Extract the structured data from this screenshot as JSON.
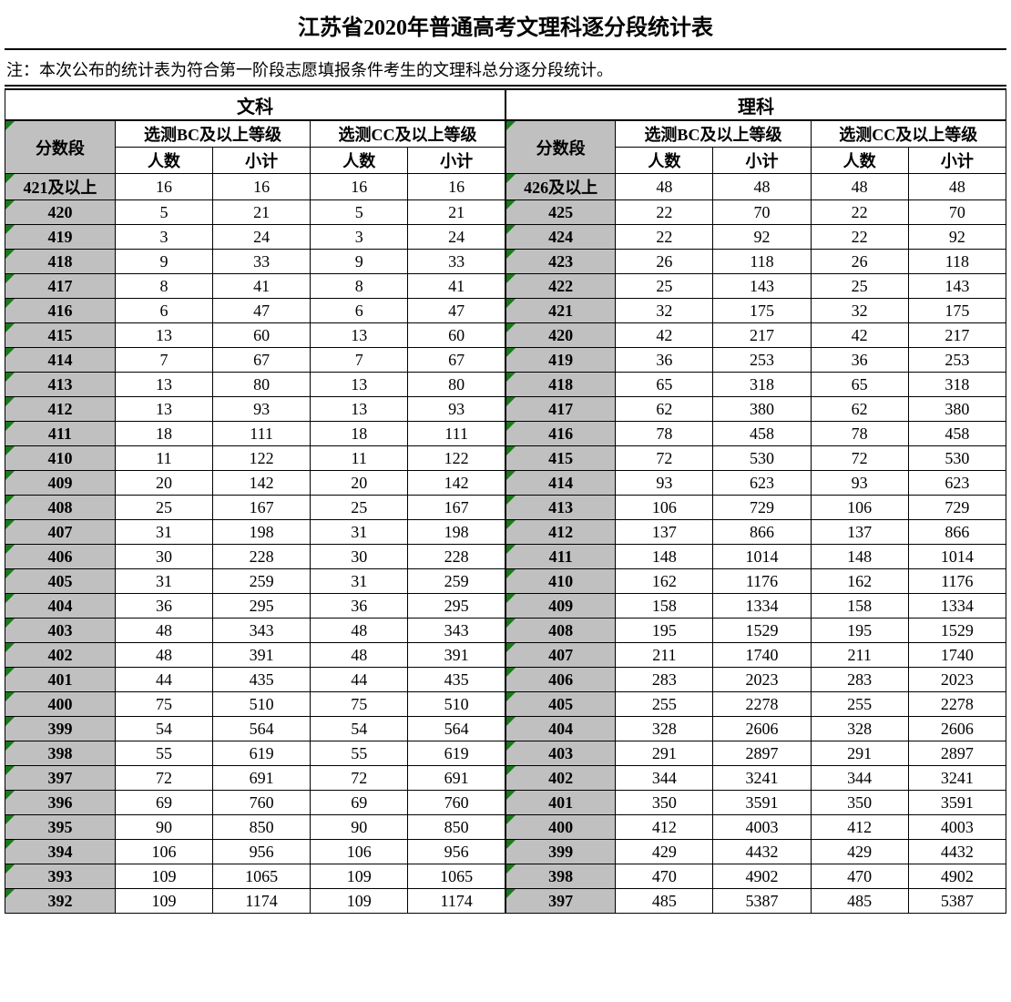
{
  "title": "江苏省2020年普通高考文理科逐分段统计表",
  "note": "注：本次公布的统计表为符合第一阶段志愿填报条件考生的文理科总分逐分段统计。",
  "sections": {
    "left": "文科",
    "right": "理科"
  },
  "colHeaders": {
    "score": "分数段",
    "bc": "选测BC及以上等级",
    "cc": "选测CC及以上等级",
    "count": "人数",
    "subtotal": "小计"
  },
  "leftRows": [
    [
      "421及以上",
      16,
      16,
      16,
      16
    ],
    [
      "420",
      5,
      21,
      5,
      21
    ],
    [
      "419",
      3,
      24,
      3,
      24
    ],
    [
      "418",
      9,
      33,
      9,
      33
    ],
    [
      "417",
      8,
      41,
      8,
      41
    ],
    [
      "416",
      6,
      47,
      6,
      47
    ],
    [
      "415",
      13,
      60,
      13,
      60
    ],
    [
      "414",
      7,
      67,
      7,
      67
    ],
    [
      "413",
      13,
      80,
      13,
      80
    ],
    [
      "412",
      13,
      93,
      13,
      93
    ],
    [
      "411",
      18,
      111,
      18,
      111
    ],
    [
      "410",
      11,
      122,
      11,
      122
    ],
    [
      "409",
      20,
      142,
      20,
      142
    ],
    [
      "408",
      25,
      167,
      25,
      167
    ],
    [
      "407",
      31,
      198,
      31,
      198
    ],
    [
      "406",
      30,
      228,
      30,
      228
    ],
    [
      "405",
      31,
      259,
      31,
      259
    ],
    [
      "404",
      36,
      295,
      36,
      295
    ],
    [
      "403",
      48,
      343,
      48,
      343
    ],
    [
      "402",
      48,
      391,
      48,
      391
    ],
    [
      "401",
      44,
      435,
      44,
      435
    ],
    [
      "400",
      75,
      510,
      75,
      510
    ],
    [
      "399",
      54,
      564,
      54,
      564
    ],
    [
      "398",
      55,
      619,
      55,
      619
    ],
    [
      "397",
      72,
      691,
      72,
      691
    ],
    [
      "396",
      69,
      760,
      69,
      760
    ],
    [
      "395",
      90,
      850,
      90,
      850
    ],
    [
      "394",
      106,
      956,
      106,
      956
    ],
    [
      "393",
      109,
      1065,
      109,
      1065
    ],
    [
      "392",
      109,
      1174,
      109,
      1174
    ]
  ],
  "rightRows": [
    [
      "426及以上",
      48,
      48,
      48,
      48
    ],
    [
      "425",
      22,
      70,
      22,
      70
    ],
    [
      "424",
      22,
      92,
      22,
      92
    ],
    [
      "423",
      26,
      118,
      26,
      118
    ],
    [
      "422",
      25,
      143,
      25,
      143
    ],
    [
      "421",
      32,
      175,
      32,
      175
    ],
    [
      "420",
      42,
      217,
      42,
      217
    ],
    [
      "419",
      36,
      253,
      36,
      253
    ],
    [
      "418",
      65,
      318,
      65,
      318
    ],
    [
      "417",
      62,
      380,
      62,
      380
    ],
    [
      "416",
      78,
      458,
      78,
      458
    ],
    [
      "415",
      72,
      530,
      72,
      530
    ],
    [
      "414",
      93,
      623,
      93,
      623
    ],
    [
      "413",
      106,
      729,
      106,
      729
    ],
    [
      "412",
      137,
      866,
      137,
      866
    ],
    [
      "411",
      148,
      1014,
      148,
      1014
    ],
    [
      "410",
      162,
      1176,
      162,
      1176
    ],
    [
      "409",
      158,
      1334,
      158,
      1334
    ],
    [
      "408",
      195,
      1529,
      195,
      1529
    ],
    [
      "407",
      211,
      1740,
      211,
      1740
    ],
    [
      "406",
      283,
      2023,
      283,
      2023
    ],
    [
      "405",
      255,
      2278,
      255,
      2278
    ],
    [
      "404",
      328,
      2606,
      328,
      2606
    ],
    [
      "403",
      291,
      2897,
      291,
      2897
    ],
    [
      "402",
      344,
      3241,
      344,
      3241
    ],
    [
      "401",
      350,
      3591,
      350,
      3591
    ],
    [
      "400",
      412,
      4003,
      412,
      4003
    ],
    [
      "399",
      429,
      4432,
      429,
      4432
    ],
    [
      "398",
      470,
      4902,
      470,
      4902
    ],
    [
      "397",
      485,
      5387,
      485,
      5387
    ]
  ]
}
